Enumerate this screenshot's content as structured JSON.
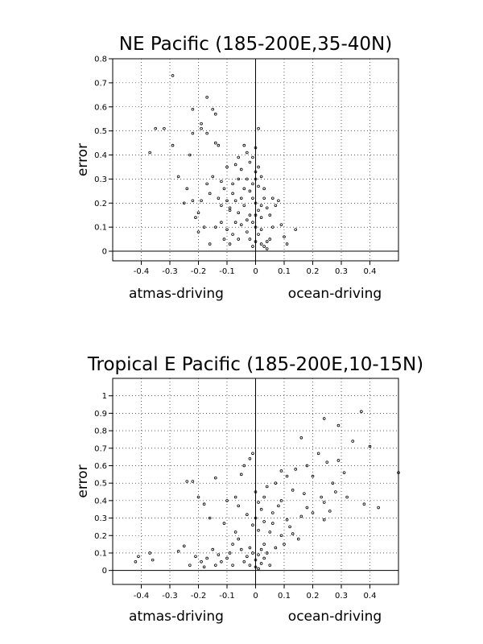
{
  "chart_data": [
    {
      "type": "scatter",
      "title": "NE Pacific (185-200E,35-40N)",
      "xlabel_left": "atmas-driving",
      "xlabel_right": "ocean-driving",
      "ylabel": "error",
      "xlim": [
        -0.5,
        0.5
      ],
      "ylim": [
        -0.04,
        0.8
      ],
      "xticks": [
        -0.4,
        -0.3,
        -0.2,
        -0.1,
        0,
        0.1,
        0.2,
        0.3,
        0.4
      ],
      "xtick_labels": [
        "-0.4",
        "-0.3",
        "-0.2",
        "-0.1",
        "0",
        "0.1",
        "0.2",
        "0.3",
        "0.4"
      ],
      "yticks": [
        0,
        0.1,
        0.2,
        0.3,
        0.4,
        0.5,
        0.6,
        0.7,
        0.8
      ],
      "ytick_labels": [
        "0",
        "0.1",
        "0.2",
        "0.3",
        "0.4",
        "0.5",
        "0.6",
        "0.7",
        "0.8"
      ],
      "grid": true,
      "points": [
        [
          -0.29,
          0.73
        ],
        [
          -0.32,
          0.51
        ],
        [
          -0.35,
          0.51
        ],
        [
          -0.37,
          0.41
        ],
        [
          -0.29,
          0.44
        ],
        [
          -0.22,
          0.59
        ],
        [
          -0.19,
          0.53
        ],
        [
          -0.17,
          0.64
        ],
        [
          -0.15,
          0.59
        ],
        [
          -0.14,
          0.57
        ],
        [
          -0.19,
          0.51
        ],
        [
          -0.17,
          0.49
        ],
        [
          -0.23,
          0.4
        ],
        [
          -0.22,
          0.49
        ],
        [
          -0.27,
          0.31
        ],
        [
          -0.24,
          0.26
        ],
        [
          -0.19,
          0.21
        ],
        [
          -0.16,
          0.24
        ],
        [
          -0.13,
          0.22
        ],
        [
          -0.13,
          0.44
        ],
        [
          -0.14,
          0.45
        ],
        [
          -0.2,
          0.16
        ],
        [
          -0.22,
          0.21
        ],
        [
          -0.17,
          0.28
        ],
        [
          -0.15,
          0.31
        ],
        [
          -0.12,
          0.19
        ],
        [
          -0.11,
          0.26
        ],
        [
          -0.09,
          0.17
        ],
        [
          -0.07,
          0.36
        ],
        [
          -0.06,
          0.39
        ],
        [
          -0.05,
          0.34
        ],
        [
          -0.06,
          0.3
        ],
        [
          -0.04,
          0.26
        ],
        [
          -0.03,
          0.3
        ],
        [
          -0.08,
          0.28
        ],
        [
          -0.1,
          0.35
        ],
        [
          -0.09,
          0.18
        ],
        [
          -0.07,
          0.21
        ],
        [
          -0.05,
          0.22
        ],
        [
          -0.04,
          0.19
        ],
        [
          -0.12,
          0.12
        ],
        [
          -0.1,
          0.09
        ],
        [
          -0.08,
          0.07
        ],
        [
          -0.06,
          0.05
        ],
        [
          -0.05,
          0.11
        ],
        [
          -0.03,
          0.08
        ],
        [
          -0.02,
          0.05
        ],
        [
          -0.01,
          0.12
        ],
        [
          0.0,
          0.1
        ],
        [
          0.01,
          0.07
        ],
        [
          0.0,
          0.04
        ],
        [
          -0.01,
          0.02
        ],
        [
          0.02,
          0.03
        ],
        [
          0.03,
          0.02
        ],
        [
          0.04,
          0.01
        ],
        [
          -0.02,
          0.25
        ],
        [
          -0.01,
          0.28
        ],
        [
          0.0,
          0.2
        ],
        [
          0.01,
          0.17
        ],
        [
          0.02,
          0.14
        ],
        [
          0.03,
          0.22
        ],
        [
          0.04,
          0.18
        ],
        [
          0.05,
          0.15
        ],
        [
          0.06,
          0.22
        ],
        [
          0.07,
          0.19
        ],
        [
          0.08,
          0.21
        ],
        [
          0.09,
          0.11
        ],
        [
          0.1,
          0.06
        ],
        [
          0.11,
          0.03
        ],
        [
          0.0,
          0.3
        ],
        [
          0.01,
          0.35
        ],
        [
          -0.01,
          0.39
        ],
        [
          0.0,
          0.43
        ],
        [
          0.01,
          0.51
        ],
        [
          -0.02,
          0.37
        ],
        [
          -0.03,
          0.41
        ],
        [
          -0.04,
          0.44
        ],
        [
          0.0,
          0.33
        ],
        [
          0.14,
          0.09
        ],
        [
          0.04,
          0.04
        ],
        [
          -0.14,
          0.1
        ],
        [
          -0.16,
          0.03
        ],
        [
          -0.2,
          0.08
        ],
        [
          -0.18,
          0.1
        ],
        [
          -0.25,
          0.2
        ],
        [
          -0.21,
          0.14
        ],
        [
          -0.11,
          0.05
        ],
        [
          -0.09,
          0.03
        ],
        [
          -0.07,
          0.12
        ],
        [
          -0.02,
          0.15
        ],
        [
          0.02,
          0.09
        ],
        [
          0.05,
          0.05
        ],
        [
          0.06,
          0.1
        ],
        [
          0.03,
          0.26
        ],
        [
          0.02,
          0.31
        ],
        [
          -0.08,
          0.24
        ],
        [
          -0.1,
          0.21
        ],
        [
          -0.06,
          0.16
        ],
        [
          -0.01,
          0.22
        ],
        [
          0.01,
          0.27
        ],
        [
          0.0,
          0.15
        ],
        [
          -0.03,
          0.13
        ],
        [
          0.02,
          0.19
        ],
        [
          -0.12,
          0.29
        ]
      ]
    },
    {
      "type": "scatter",
      "title": "Tropical E Pacific (185-200E,10-15N)",
      "xlabel_left": "atmas-driving",
      "xlabel_right": "ocean-driving",
      "ylabel": "error",
      "xlim": [
        -0.5,
        0.5
      ],
      "ylim": [
        -0.08,
        1.1
      ],
      "xticks": [
        -0.4,
        -0.3,
        -0.2,
        -0.1,
        0,
        0.1,
        0.2,
        0.3,
        0.4
      ],
      "xtick_labels": [
        "-0.4",
        "-0.3",
        "-0.2",
        "-0.1",
        "0",
        "0.1",
        "0.2",
        "0.3",
        "0.4"
      ],
      "yticks": [
        0,
        0.1,
        0.2,
        0.3,
        0.4,
        0.5,
        0.6,
        0.7,
        0.8,
        0.9,
        1
      ],
      "ytick_labels": [
        "0",
        "0.1",
        "0.2",
        "0.3",
        "0.4",
        "0.5",
        "0.6",
        "0.7",
        "0.8",
        "0.9",
        "1"
      ],
      "grid": true,
      "points": [
        [
          0.37,
          0.91
        ],
        [
          0.24,
          0.87
        ],
        [
          0.29,
          0.83
        ],
        [
          0.16,
          0.76
        ],
        [
          0.34,
          0.74
        ],
        [
          0.4,
          0.71
        ],
        [
          0.22,
          0.67
        ],
        [
          0.29,
          0.63
        ],
        [
          0.25,
          0.62
        ],
        [
          0.18,
          0.6
        ],
        [
          0.14,
          0.58
        ],
        [
          0.31,
          0.56
        ],
        [
          0.5,
          0.56
        ],
        [
          0.09,
          0.57
        ],
        [
          0.11,
          0.54
        ],
        [
          0.2,
          0.54
        ],
        [
          0.27,
          0.5
        ],
        [
          0.07,
          0.5
        ],
        [
          0.04,
          0.48
        ],
        [
          0.13,
          0.46
        ],
        [
          0.17,
          0.44
        ],
        [
          0.23,
          0.42
        ],
        [
          0.09,
          0.4
        ],
        [
          0.18,
          0.36
        ],
        [
          0.24,
          0.39
        ],
        [
          0.38,
          0.38
        ],
        [
          0.43,
          0.36
        ],
        [
          0.26,
          0.34
        ],
        [
          0.16,
          0.31
        ],
        [
          0.11,
          0.29
        ],
        [
          0.06,
          0.27
        ],
        [
          0.05,
          0.22
        ],
        [
          0.09,
          0.2
        ],
        [
          0.12,
          0.25
        ],
        [
          0.24,
          0.29
        ],
        [
          0.15,
          0.18
        ],
        [
          0.07,
          0.13
        ],
        [
          0.03,
          0.15
        ],
        [
          0.02,
          0.12
        ],
        [
          0.01,
          0.09
        ],
        [
          0.0,
          0.06
        ],
        [
          -0.01,
          0.1
        ],
        [
          -0.02,
          0.13
        ],
        [
          -0.03,
          0.08
        ],
        [
          -0.04,
          0.05
        ],
        [
          -0.02,
          0.03
        ],
        [
          0.0,
          0.02
        ],
        [
          0.01,
          0.01
        ],
        [
          0.02,
          0.04
        ],
        [
          0.03,
          0.07
        ],
        [
          0.04,
          0.1
        ],
        [
          0.05,
          0.03
        ],
        [
          -0.05,
          0.12
        ],
        [
          -0.06,
          0.18
        ],
        [
          -0.07,
          0.22
        ],
        [
          -0.08,
          0.15
        ],
        [
          -0.09,
          0.1
        ],
        [
          -0.1,
          0.07
        ],
        [
          -0.12,
          0.05
        ],
        [
          -0.13,
          0.09
        ],
        [
          -0.15,
          0.12
        ],
        [
          -0.17,
          0.07
        ],
        [
          -0.19,
          0.05
        ],
        [
          -0.21,
          0.08
        ],
        [
          -0.23,
          0.03
        ],
        [
          -0.25,
          0.14
        ],
        [
          -0.27,
          0.11
        ],
        [
          -0.24,
          0.51
        ],
        [
          -0.22,
          0.51
        ],
        [
          -0.2,
          0.42
        ],
        [
          -0.18,
          0.38
        ],
        [
          -0.14,
          0.53
        ],
        [
          -0.1,
          0.4
        ],
        [
          -0.07,
          0.42
        ],
        [
          -0.05,
          0.55
        ],
        [
          -0.04,
          0.6
        ],
        [
          -0.02,
          0.64
        ],
        [
          -0.01,
          0.67
        ],
        [
          0.0,
          0.45
        ],
        [
          0.01,
          0.39
        ],
        [
          0.02,
          0.35
        ],
        [
          0.0,
          0.3
        ],
        [
          -0.01,
          0.26
        ],
        [
          0.01,
          0.23
        ],
        [
          0.03,
          0.28
        ],
        [
          -0.03,
          0.32
        ],
        [
          -0.06,
          0.37
        ],
        [
          -0.11,
          0.27
        ],
        [
          -0.16,
          0.3
        ],
        [
          0.06,
          0.33
        ],
        [
          0.08,
          0.37
        ],
        [
          0.03,
          0.42
        ],
        [
          -0.42,
          0.05
        ],
        [
          -0.41,
          0.08
        ],
        [
          -0.37,
          0.1
        ],
        [
          -0.36,
          0.06
        ],
        [
          -0.18,
          0.02
        ],
        [
          -0.14,
          0.03
        ],
        [
          0.1,
          0.15
        ],
        [
          0.13,
          0.21
        ],
        [
          -0.08,
          0.03
        ],
        [
          0.2,
          0.33
        ],
        [
          0.28,
          0.45
        ],
        [
          0.32,
          0.42
        ]
      ]
    }
  ]
}
